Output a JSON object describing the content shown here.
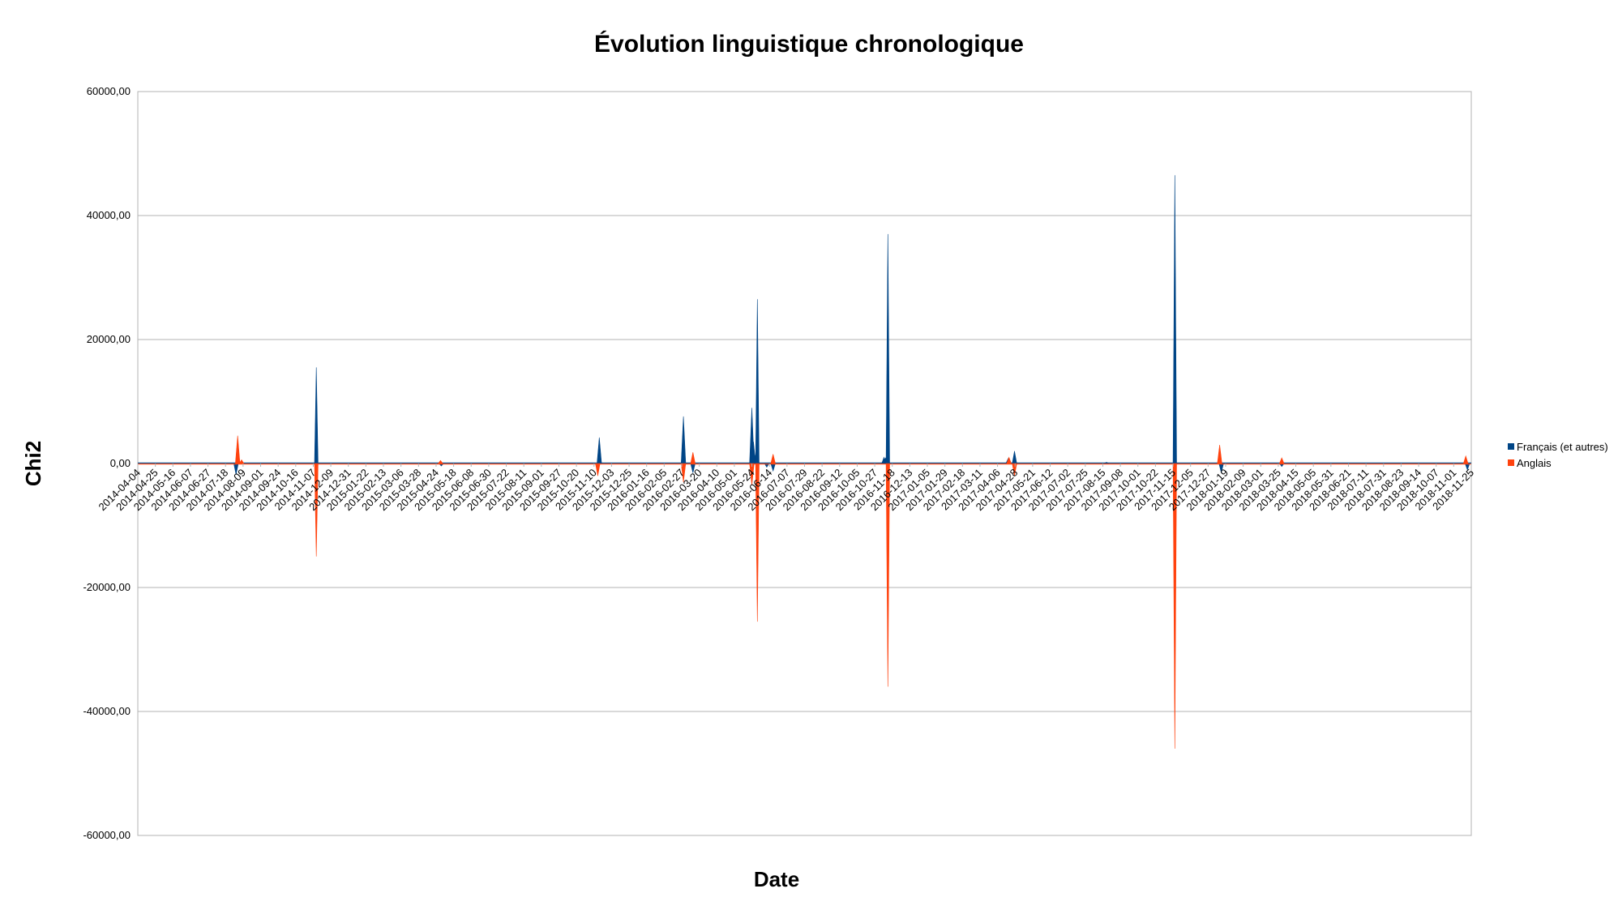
{
  "chart_data": {
    "type": "area",
    "title": "Évolution linguistique chronologique",
    "xlabel": "Date",
    "ylabel": "Chi2",
    "ylim": [
      -60000,
      60000
    ],
    "y_ticks": [
      60000,
      40000,
      20000,
      0,
      -20000,
      -40000,
      -60000
    ],
    "y_tick_labels": [
      "60000,00",
      "40000,00",
      "20000,00",
      "0,00",
      "-20000,00",
      "-40000,00",
      "-60000,00"
    ],
    "grid": true,
    "legend": "right",
    "x_tick_labels": [
      "2014-04-04",
      "2014-04-25",
      "2014-05-16",
      "2014-06-07",
      "2014-06-27",
      "2014-07-18",
      "2014-08-09",
      "2014-09-01",
      "2014-09-24",
      "2014-10-16",
      "2014-11-07",
      "2014-12-09",
      "2014-12-31",
      "2015-01-22",
      "2015-02-13",
      "2015-03-06",
      "2015-03-28",
      "2015-04-24",
      "2015-05-18",
      "2015-06-08",
      "2015-06-30",
      "2015-07-22",
      "2015-08-11",
      "2015-09-01",
      "2015-09-27",
      "2015-10-20",
      "2015-11-10",
      "2015-12-03",
      "2015-12-25",
      "2016-01-16",
      "2016-02-05",
      "2016-02-27",
      "2016-03-20",
      "2016-04-10",
      "2016-05-01",
      "2016-05-24",
      "2016-06-14",
      "2016-07-07",
      "2016-07-29",
      "2016-08-22",
      "2016-09-12",
      "2016-10-05",
      "2016-10-27",
      "2016-11-18",
      "2016-12-13",
      "2017-01-05",
      "2017-01-29",
      "2017-02-18",
      "2017-03-11",
      "2017-04-06",
      "2017-04-28",
      "2017-05-21",
      "2017-06-12",
      "2017-07-02",
      "2017-07-25",
      "2017-08-15",
      "2017-09-08",
      "2017-10-01",
      "2017-10-22",
      "2017-11-15",
      "2017-12-05",
      "2017-12-27",
      "2018-01-19",
      "2018-02-09",
      "2018-03-01",
      "2018-03-25",
      "2018-04-15",
      "2018-05-05",
      "2018-05-31",
      "2018-06-21",
      "2018-07-11",
      "2018-07-31",
      "2018-08-23",
      "2018-09-14",
      "2018-10-07",
      "2018-11-01",
      "2018-11-25"
    ],
    "series": [
      {
        "name": "Français (et autres)",
        "color": "#004586",
        "points": [
          {
            "x": "2014-08-07",
            "y": -1800
          },
          {
            "x": "2014-08-10",
            "y": 300
          },
          {
            "x": "2014-11-17",
            "y": 15500
          },
          {
            "x": "2015-04-25",
            "y": -400
          },
          {
            "x": "2015-11-12",
            "y": 4200
          },
          {
            "x": "2016-02-27",
            "y": 7600
          },
          {
            "x": "2016-03-10",
            "y": -1500
          },
          {
            "x": "2016-05-24",
            "y": 9000
          },
          {
            "x": "2016-05-26",
            "y": 3500
          },
          {
            "x": "2016-05-29",
            "y": 1500
          },
          {
            "x": "2016-05-31",
            "y": 26500
          },
          {
            "x": "2016-06-12",
            "y": -600
          },
          {
            "x": "2016-06-20",
            "y": -1200
          },
          {
            "x": "2016-11-08",
            "y": 1000
          },
          {
            "x": "2016-11-10",
            "y": 900
          },
          {
            "x": "2016-11-13",
            "y": 37000
          },
          {
            "x": "2017-04-15",
            "y": 800
          },
          {
            "x": "2017-04-23",
            "y": 2000
          },
          {
            "x": "2017-08-18",
            "y": 200
          },
          {
            "x": "2017-11-13",
            "y": 46500
          },
          {
            "x": "2018-01-11",
            "y": -1500
          },
          {
            "x": "2018-03-29",
            "y": -500
          },
          {
            "x": "2018-11-20",
            "y": -1000
          }
        ]
      },
      {
        "name": "Anglais",
        "color": "#ff420e",
        "points": [
          {
            "x": "2014-08-09",
            "y": 4500
          },
          {
            "x": "2014-08-14",
            "y": 600
          },
          {
            "x": "2014-11-17",
            "y": -15000
          },
          {
            "x": "2015-04-24",
            "y": 500
          },
          {
            "x": "2015-11-10",
            "y": -2000
          },
          {
            "x": "2016-02-27",
            "y": -3000
          },
          {
            "x": "2016-03-10",
            "y": 1800
          },
          {
            "x": "2016-05-24",
            "y": -3500
          },
          {
            "x": "2016-05-31",
            "y": -25500
          },
          {
            "x": "2016-06-20",
            "y": 1500
          },
          {
            "x": "2016-11-13",
            "y": -36000
          },
          {
            "x": "2017-04-16",
            "y": 1000
          },
          {
            "x": "2017-04-23",
            "y": -2000
          },
          {
            "x": "2017-11-13",
            "y": -46000
          },
          {
            "x": "2018-01-09",
            "y": 3000
          },
          {
            "x": "2018-03-29",
            "y": 900
          },
          {
            "x": "2018-11-18",
            "y": 1200
          }
        ]
      }
    ]
  }
}
